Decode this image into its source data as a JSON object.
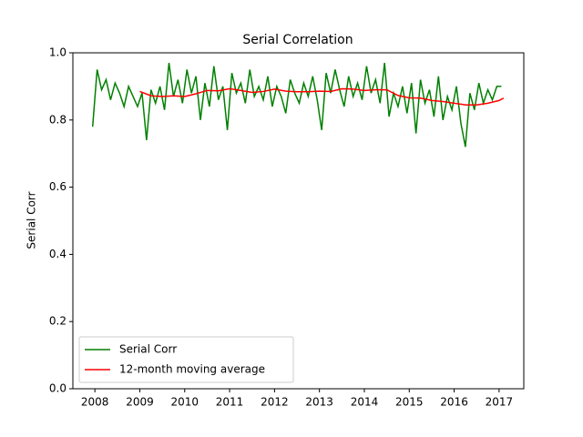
{
  "chart_data": {
    "type": "line",
    "title": "Serial Correlation",
    "ylabel": "Serial Corr",
    "xlim": [
      2007.51,
      2017.55
    ],
    "ylim": [
      0,
      1
    ],
    "xticks": [
      2008,
      2009,
      2010,
      2011,
      2012,
      2013,
      2014,
      2015,
      2016,
      2017
    ],
    "yticks": [
      {
        "value": 0,
        "label": "0.0"
      },
      {
        "value": 0.2,
        "label": "0.2"
      },
      {
        "value": 0.4,
        "label": "0.4"
      },
      {
        "value": 0.6,
        "label": "0.6"
      },
      {
        "value": 0.8,
        "label": "0.8"
      },
      {
        "value": 1,
        "label": "1.0"
      }
    ],
    "legend": "lower left",
    "series": [
      {
        "name": "Serial Corr",
        "color": "#008000",
        "x": [
          2007.95,
          2008.05,
          2008.15,
          2008.25,
          2008.35,
          2008.45,
          2008.55,
          2008.65,
          2008.75,
          2008.85,
          2008.95,
          2009.05,
          2009.15,
          2009.25,
          2009.35,
          2009.45,
          2009.55,
          2009.65,
          2009.75,
          2009.85,
          2009.95,
          2010.05,
          2010.15,
          2010.25,
          2010.35,
          2010.45,
          2010.55,
          2010.65,
          2010.75,
          2010.85,
          2010.95,
          2011.05,
          2011.15,
          2011.25,
          2011.35,
          2011.45,
          2011.55,
          2011.65,
          2011.75,
          2011.85,
          2011.95,
          2012.05,
          2012.15,
          2012.25,
          2012.35,
          2012.45,
          2012.55,
          2012.65,
          2012.75,
          2012.85,
          2012.95,
          2013.05,
          2013.15,
          2013.25,
          2013.35,
          2013.45,
          2013.55,
          2013.65,
          2013.75,
          2013.85,
          2013.95,
          2014.05,
          2014.15,
          2014.25,
          2014.35,
          2014.45,
          2014.55,
          2014.65,
          2014.75,
          2014.85,
          2014.95,
          2015.05,
          2015.15,
          2015.25,
          2015.35,
          2015.45,
          2015.55,
          2015.65,
          2015.75,
          2015.85,
          2015.95,
          2016.05,
          2016.15,
          2016.25,
          2016.35,
          2016.45,
          2016.55,
          2016.65,
          2016.75,
          2016.85,
          2016.95,
          2017.05
        ],
        "values": [
          0.78,
          0.95,
          0.89,
          0.92,
          0.86,
          0.91,
          0.88,
          0.84,
          0.9,
          0.87,
          0.84,
          0.88,
          0.74,
          0.89,
          0.85,
          0.9,
          0.83,
          0.97,
          0.87,
          0.92,
          0.85,
          0.95,
          0.88,
          0.93,
          0.8,
          0.91,
          0.84,
          0.96,
          0.86,
          0.9,
          0.77,
          0.94,
          0.88,
          0.91,
          0.85,
          0.95,
          0.87,
          0.9,
          0.86,
          0.93,
          0.84,
          0.9,
          0.87,
          0.82,
          0.92,
          0.88,
          0.85,
          0.91,
          0.87,
          0.93,
          0.86,
          0.77,
          0.94,
          0.88,
          0.95,
          0.89,
          0.84,
          0.93,
          0.87,
          0.91,
          0.86,
          0.96,
          0.88,
          0.92,
          0.85,
          0.97,
          0.81,
          0.88,
          0.84,
          0.9,
          0.82,
          0.91,
          0.76,
          0.92,
          0.85,
          0.89,
          0.81,
          0.93,
          0.8,
          0.87,
          0.83,
          0.9,
          0.79,
          0.72,
          0.88,
          0.83,
          0.91,
          0.85,
          0.89,
          0.86,
          0.9,
          0.9
        ]
      },
      {
        "name": "12-month moving average",
        "color": "#ff0000",
        "x": [
          2009.0,
          2009.25,
          2009.5,
          2009.75,
          2010.0,
          2010.25,
          2010.5,
          2010.75,
          2011.0,
          2011.25,
          2011.5,
          2011.75,
          2012.0,
          2012.25,
          2012.5,
          2012.75,
          2013.0,
          2013.25,
          2013.5,
          2013.75,
          2014.0,
          2014.25,
          2014.5,
          2014.75,
          2015.0,
          2015.25,
          2015.5,
          2015.75,
          2016.0,
          2016.25,
          2016.5,
          2016.75,
          2017.0,
          2017.1
        ],
        "values": [
          0.885,
          0.872,
          0.87,
          0.872,
          0.87,
          0.878,
          0.888,
          0.887,
          0.893,
          0.888,
          0.882,
          0.885,
          0.892,
          0.886,
          0.884,
          0.884,
          0.886,
          0.885,
          0.893,
          0.892,
          0.888,
          0.89,
          0.89,
          0.873,
          0.866,
          0.865,
          0.858,
          0.855,
          0.85,
          0.845,
          0.845,
          0.85,
          0.858,
          0.865
        ]
      }
    ]
  }
}
